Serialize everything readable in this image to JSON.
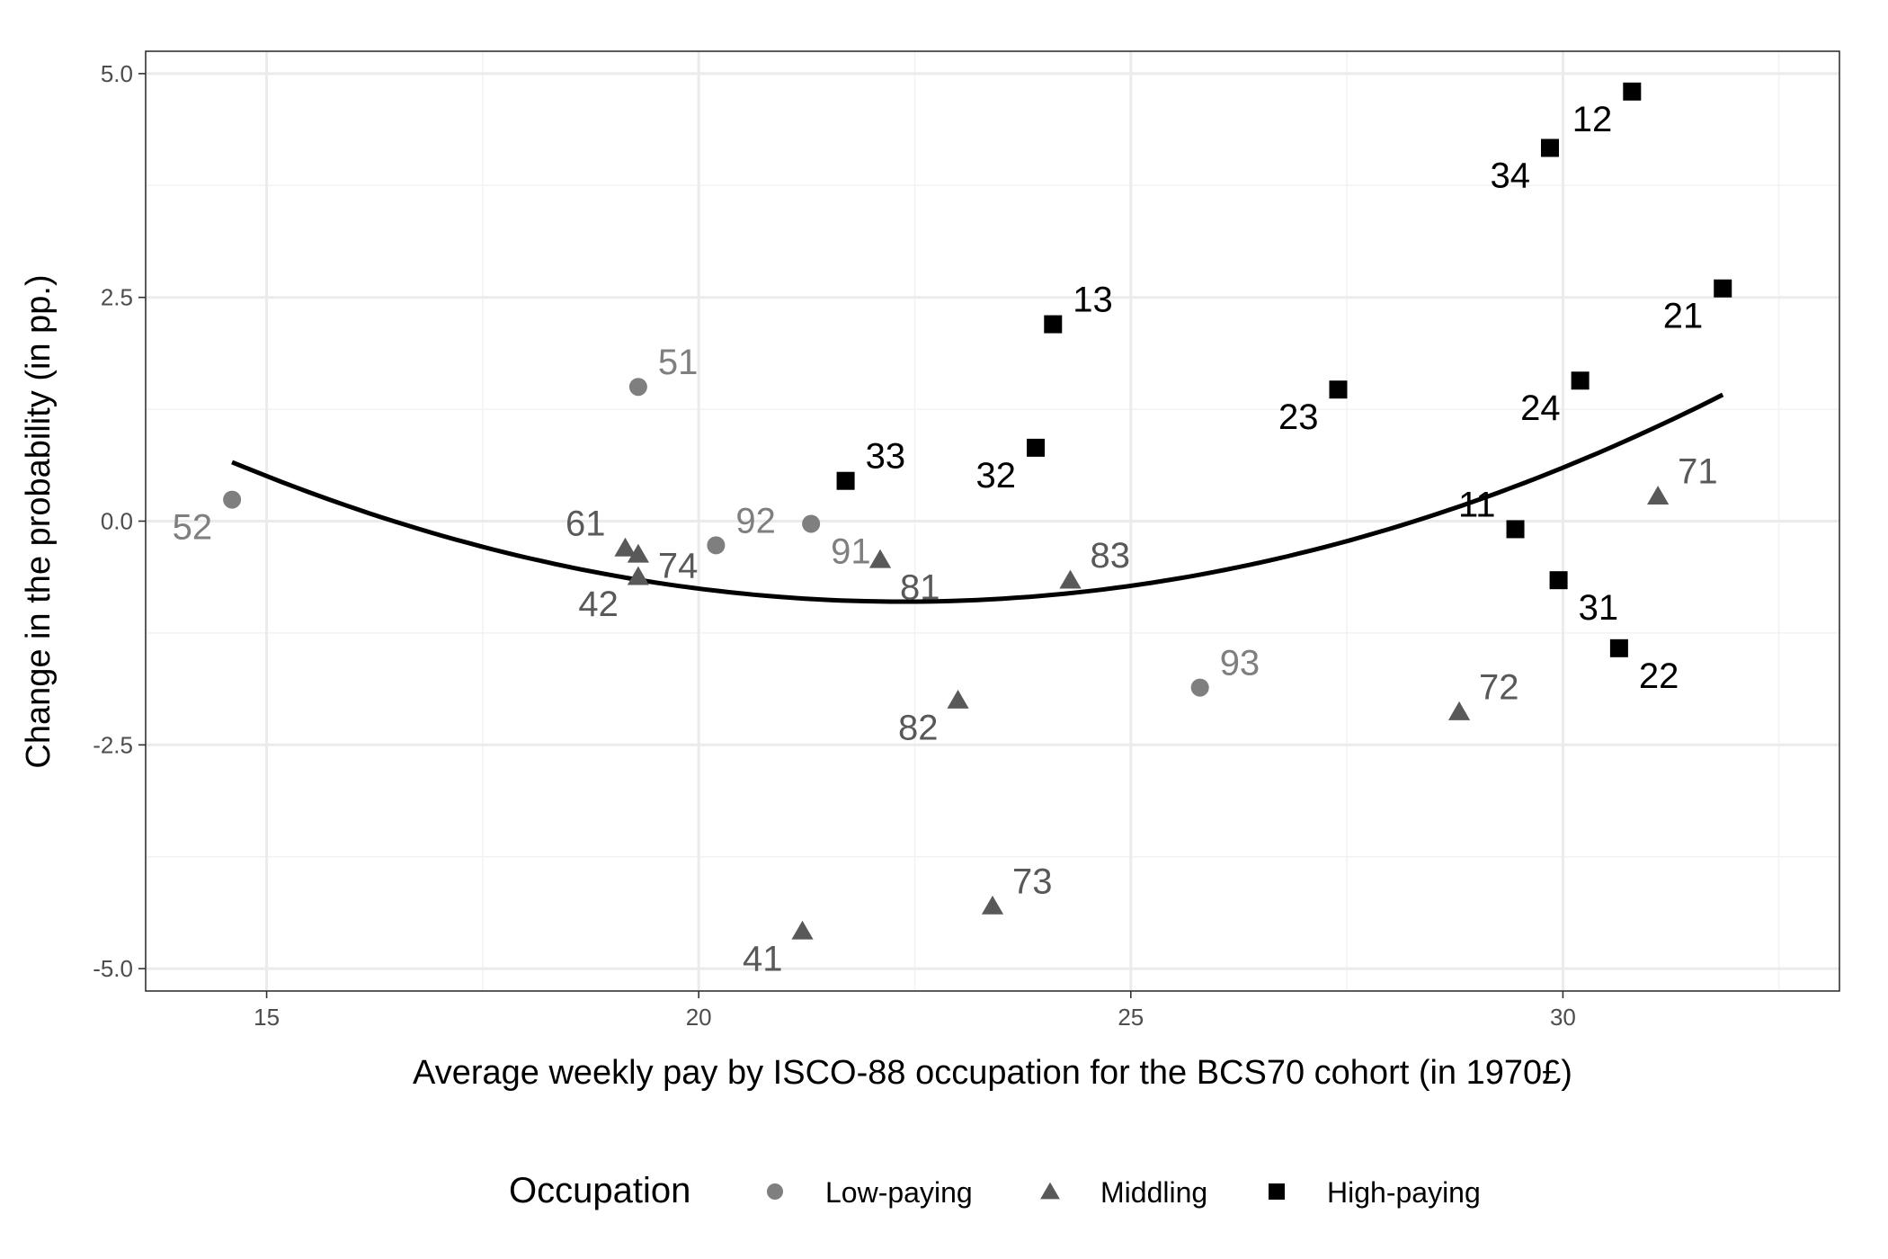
{
  "chart_data": {
    "type": "scatter",
    "xlabel": "Average weekly pay by ISCO-88 occupation for the BCS70 cohort (in 1970£)",
    "ylabel": "Change in the probability (in pp.)",
    "xlim": [
      13.6,
      33.2
    ],
    "ylim": [
      -5.25,
      5.25
    ],
    "x_ticks": [
      15,
      20,
      25,
      30
    ],
    "y_ticks": [
      5.0,
      2.5,
      0.0,
      -2.5,
      -5.0
    ],
    "x_tick_labels": [
      "15",
      "20",
      "25",
      "30"
    ],
    "y_tick_labels": [
      "5.0",
      "2.5",
      "0.0",
      "-2.5",
      "-5.0"
    ],
    "grid": true,
    "legend_position": "bottom",
    "legend": {
      "title": "Occupation",
      "entries": [
        {
          "name": "Low-paying",
          "shape": "circle",
          "color": "#7f7f7f"
        },
        {
          "name": "Middling",
          "shape": "triangle",
          "color": "#595959"
        },
        {
          "name": "High-paying",
          "shape": "square",
          "color": "#000000"
        }
      ]
    },
    "series": [
      {
        "name": "Low-paying",
        "shape": "circle",
        "color": "#7f7f7f",
        "label_color": "#7f7f7f",
        "points": [
          {
            "label": "52",
            "x": 14.6,
            "y": 0.24,
            "label_pos": "below-left"
          },
          {
            "label": "51",
            "x": 19.3,
            "y": 1.5,
            "label_pos": "above-right"
          },
          {
            "label": "92",
            "x": 20.2,
            "y": -0.27,
            "label_pos": "above-right"
          },
          {
            "label": "91",
            "x": 21.3,
            "y": -0.03,
            "label_pos": "below-right"
          },
          {
            "label": "93",
            "x": 25.8,
            "y": -1.86,
            "label_pos": "above-right"
          }
        ]
      },
      {
        "name": "Middling",
        "shape": "triangle",
        "color": "#595959",
        "label_color": "#595959",
        "points": [
          {
            "label": "61",
            "x": 19.15,
            "y": -0.3,
            "label_pos": "above-left"
          },
          {
            "label": "74",
            "x": 19.3,
            "y": -0.37,
            "label_pos": "right"
          },
          {
            "label": "42",
            "x": 19.3,
            "y": -0.62,
            "label_pos": "below-left"
          },
          {
            "label": "41",
            "x": 21.2,
            "y": -4.58,
            "label_pos": "below-left"
          },
          {
            "label": "81",
            "x": 22.1,
            "y": -0.43,
            "label_pos": "below-right"
          },
          {
            "label": "82",
            "x": 23.0,
            "y": -2.0,
            "label_pos": "below-left"
          },
          {
            "label": "73",
            "x": 23.4,
            "y": -4.3,
            "label_pos": "above-right"
          },
          {
            "label": "83",
            "x": 24.3,
            "y": -0.66,
            "label_pos": "above-right"
          },
          {
            "label": "72",
            "x": 28.8,
            "y": -2.13,
            "label_pos": "above-right"
          },
          {
            "label": "71",
            "x": 31.1,
            "y": 0.28,
            "label_pos": "above-right"
          }
        ]
      },
      {
        "name": "High-paying",
        "shape": "square",
        "color": "#000000",
        "label_color": "#000000",
        "points": [
          {
            "label": "33",
            "x": 21.7,
            "y": 0.45,
            "label_pos": "above-right"
          },
          {
            "label": "32",
            "x": 23.9,
            "y": 0.82,
            "label_pos": "below-left"
          },
          {
            "label": "13",
            "x": 24.1,
            "y": 2.2,
            "label_pos": "above-right"
          },
          {
            "label": "23",
            "x": 27.4,
            "y": 1.47,
            "label_pos": "below-left"
          },
          {
            "label": "11",
            "x": 29.45,
            "y": -0.09,
            "label_pos": "above-left"
          },
          {
            "label": "34",
            "x": 29.85,
            "y": 4.17,
            "label_pos": "below-left"
          },
          {
            "label": "31",
            "x": 29.95,
            "y": -0.66,
            "label_pos": "below-right"
          },
          {
            "label": "24",
            "x": 30.2,
            "y": 1.57,
            "label_pos": "below-left"
          },
          {
            "label": "22",
            "x": 30.65,
            "y": -1.42,
            "label_pos": "below-right"
          },
          {
            "label": "12",
            "x": 30.8,
            "y": 4.8,
            "label_pos": "below-left"
          },
          {
            "label": "21",
            "x": 31.85,
            "y": 2.6,
            "label_pos": "below-left"
          }
        ]
      }
    ],
    "fit": {
      "type": "quadratic",
      "x_range": [
        14.6,
        31.85
      ],
      "coefficients": {
        "a": 0.02577,
        "b": -1.15335,
        "c": 12.005
      }
    }
  }
}
